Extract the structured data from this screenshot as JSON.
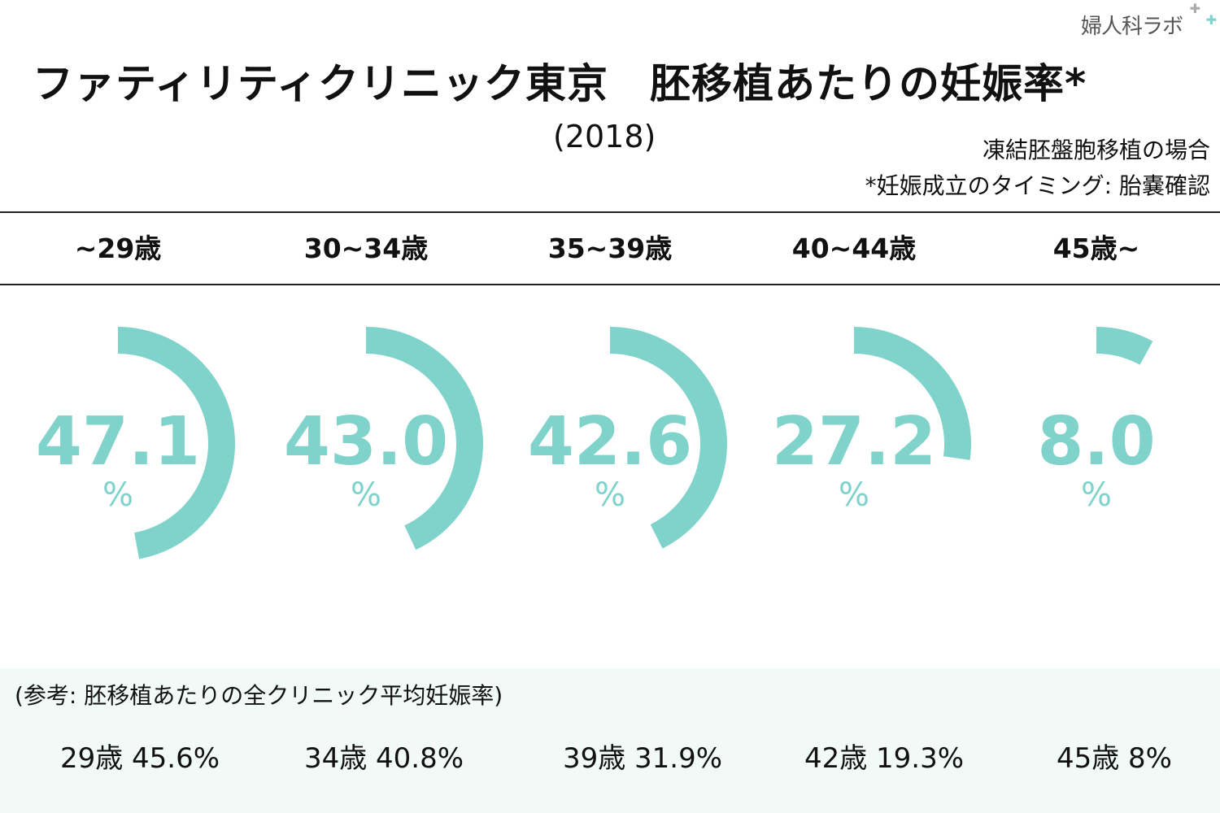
{
  "logo": {
    "text": "婦人科ラボ"
  },
  "title": "ファティリティクリニック東京　胚移植あたりの妊娠率*",
  "year": "(2018)",
  "notes": [
    "凍結胚盤胞移植の場合",
    "*妊娠成立のタイミング: 胎嚢確認"
  ],
  "chart_data": {
    "type": "radial-bar",
    "categories": [
      "~29歳",
      "30~34歳",
      "35~39歳",
      "40~44歳",
      "45歳~"
    ],
    "values": [
      47.1,
      43.0,
      42.6,
      27.2,
      8.0
    ],
    "value_labels": [
      "47.1",
      "43.0",
      "42.6",
      "27.2",
      "8.0"
    ],
    "unit": "%",
    "range": [
      0,
      100
    ],
    "color": "#7fd3cb"
  },
  "reference": {
    "title": "(参考: 胚移植あたりの全クリニック平均妊娠率)",
    "items": [
      "29歳 45.6%",
      "34歳 40.8%",
      "39歳 31.9%",
      "42歳 19.3%",
      "45歳 8%"
    ]
  }
}
